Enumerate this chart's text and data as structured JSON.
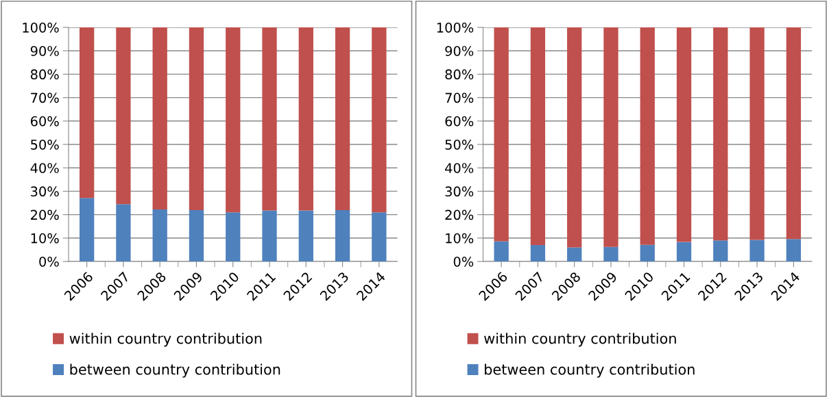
{
  "chart_data": [
    {
      "type": "bar",
      "stacked": true,
      "categories": [
        "2006",
        "2007",
        "2008",
        "2009",
        "2010",
        "2011",
        "2012",
        "2013",
        "2014"
      ],
      "series": [
        {
          "name": "between country contribution",
          "color": "#4f81bd",
          "values": [
            27.1,
            24.5,
            22.2,
            21.9,
            21.0,
            21.8,
            21.8,
            21.9,
            21.0
          ]
        },
        {
          "name": "within country contribution",
          "color": "#c0504d",
          "values": [
            72.9,
            75.5,
            77.8,
            78.1,
            79.0,
            78.2,
            78.2,
            78.1,
            79.0
          ]
        }
      ],
      "ylim": [
        0,
        100
      ],
      "yticks": [
        {
          "value": 0,
          "label": "0%"
        },
        {
          "value": 10,
          "label": "10%"
        },
        {
          "value": 20,
          "label": "20%"
        },
        {
          "value": 30,
          "label": "30%"
        },
        {
          "value": 40,
          "label": "40%"
        },
        {
          "value": 50,
          "label": "50%"
        },
        {
          "value": 60,
          "label": "60%"
        },
        {
          "value": 70,
          "label": "70%"
        },
        {
          "value": 80,
          "label": "80%"
        },
        {
          "value": 90,
          "label": "90%"
        },
        {
          "value": 100,
          "label": "100%"
        }
      ],
      "grid": "y",
      "legend": "bottom"
    },
    {
      "type": "bar",
      "stacked": true,
      "categories": [
        "2006",
        "2007",
        "2008",
        "2009",
        "2010",
        "2011",
        "2012",
        "2013",
        "2014"
      ],
      "series": [
        {
          "name": "between country contribution",
          "color": "#4f81bd",
          "values": [
            8.6,
            7.0,
            6.0,
            6.2,
            7.1,
            8.3,
            9.0,
            9.2,
            9.6
          ]
        },
        {
          "name": "within country contribution",
          "color": "#c0504d",
          "values": [
            91.4,
            93.0,
            94.0,
            93.8,
            92.9,
            91.7,
            91.0,
            90.8,
            90.4
          ]
        }
      ],
      "ylim": [
        0,
        100
      ],
      "yticks": [
        {
          "value": 0,
          "label": "0%"
        },
        {
          "value": 10,
          "label": "10%"
        },
        {
          "value": 20,
          "label": "20%"
        },
        {
          "value": 30,
          "label": "30%"
        },
        {
          "value": 40,
          "label": "40%"
        },
        {
          "value": 50,
          "label": "50%"
        },
        {
          "value": 60,
          "label": "60%"
        },
        {
          "value": 70,
          "label": "70%"
        },
        {
          "value": 80,
          "label": "80%"
        },
        {
          "value": 90,
          "label": "90%"
        },
        {
          "value": 100,
          "label": "100%"
        }
      ],
      "grid": "y",
      "legend": "bottom"
    }
  ]
}
